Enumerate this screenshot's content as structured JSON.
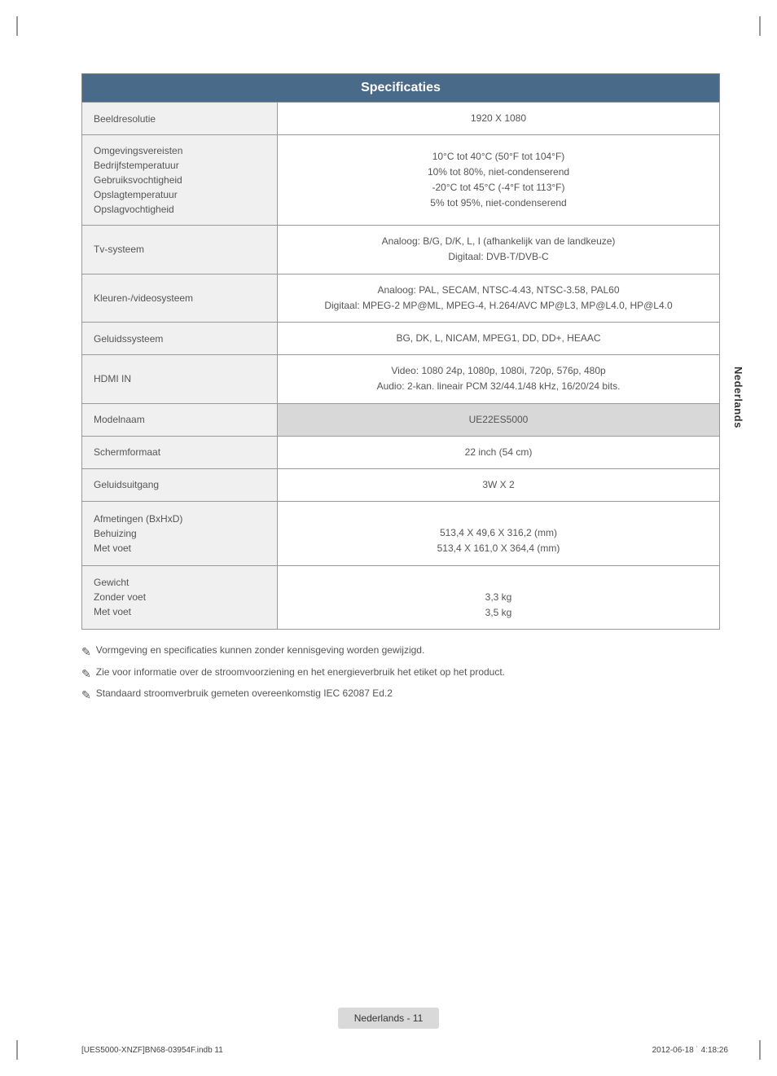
{
  "title": "Specificaties",
  "side_tab": "Nederlands",
  "rows": [
    {
      "label": "Beeldresolutie",
      "value": "1920 X 1080"
    },
    {
      "label": "Omgevingsvereisten\nBedrijfstemperatuur\nGebruiksvochtigheid\nOpslagtemperatuur\nOpslagvochtigheid",
      "value": "10°C tot 40°C (50°F tot 104°F)\n10% tot 80%, niet-condenserend\n-20°C tot 45°C (-4°F  tot 113°F)\n5% tot 95%, niet-condenserend"
    },
    {
      "label": "Tv-systeem",
      "value": "Analoog: B/G, D/K, L, I (afhankelijk van de landkeuze)\nDigitaal: DVB-T/DVB-C"
    },
    {
      "label": "Kleuren-/videosysteem",
      "value": "Analoog: PAL, SECAM, NTSC-4.43, NTSC-3.58, PAL60\nDigitaal: MPEG-2 MP@ML, MPEG-4, H.264/AVC MP@L3, MP@L4.0, HP@L4.0"
    },
    {
      "label": "Geluidssysteem",
      "value": "BG, DK, L, NICAM, MPEG1, DD, DD+, HEAAC"
    },
    {
      "label": "HDMI IN",
      "value": "Video: 1080 24p, 1080p, 1080i, 720p, 576p, 480p\nAudio: 2-kan. lineair PCM 32/44.1/48 kHz, 16/20/24 bits."
    },
    {
      "label": "Modelnaam",
      "value": "UE22ES5000",
      "header": true
    },
    {
      "label": "Schermformaat",
      "value": "22 inch (54 cm)"
    },
    {
      "label": "Geluidsuitgang",
      "value": "3W X 2"
    },
    {
      "label": "Afmetingen (BxHxD)\nBehuizing\nMet voet",
      "value": "\n513,4 X 49,6 X 316,2 (mm)\n513,4 X 161,0 X 364,4 (mm)"
    },
    {
      "label": "Gewicht\nZonder voet\nMet voet",
      "value": "\n3,3 kg\n3,5 kg"
    }
  ],
  "notes": [
    "Vormgeving en specificaties kunnen zonder kennisgeving worden gewijzigd.",
    "Zie voor informatie over de stroomvoorziening en het energieverbruik het etiket op het product.",
    "Standaard stroomverbruik gemeten overeenkomstig IEC 62087 Ed.2"
  ],
  "page_label": "Nederlands - 11",
  "print_left": "[UES5000-XNZF]BN68-03954F.indb   11",
  "print_right": "2012-06-18   ˙ 4:18:26",
  "note_glyph": "✎"
}
